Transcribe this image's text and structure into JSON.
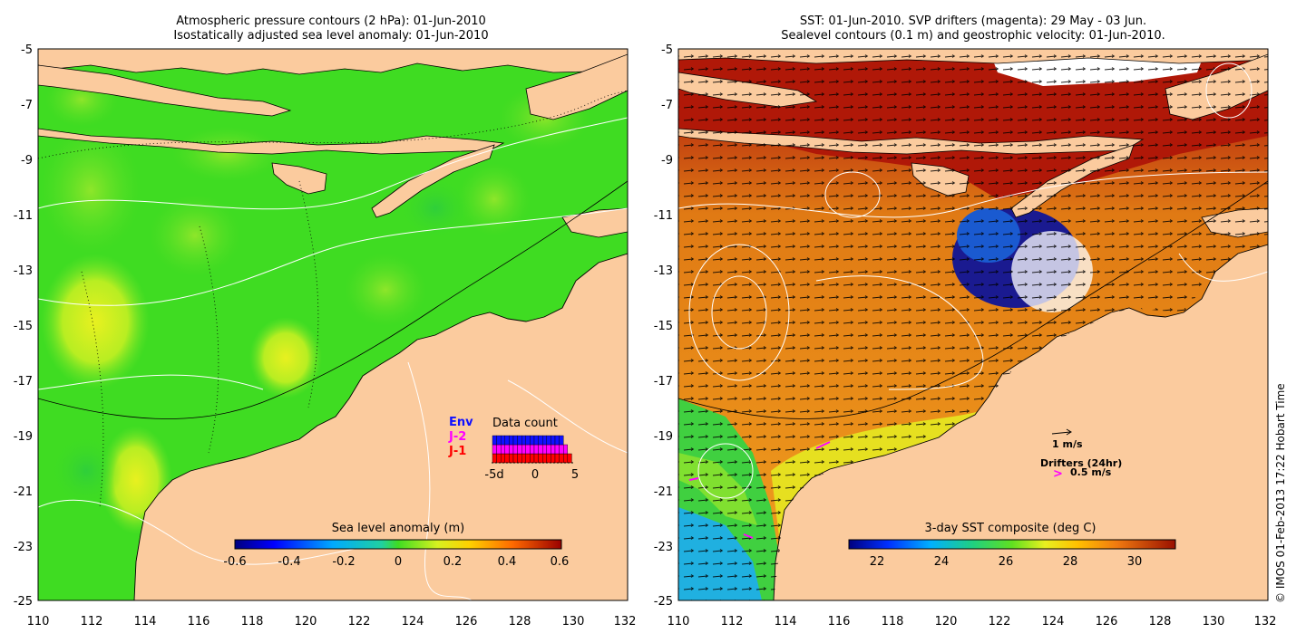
{
  "left_panel": {
    "title_line1": "Atmospheric pressure contours (2 hPa): 01-Jun-2010",
    "title_line2": "Isostatically adjusted sea level anomaly: 01-Jun-2010",
    "colorbar": {
      "label": "Sea level anomaly (m)",
      "ticks": [
        "-0.6",
        "-0.4",
        "-0.2",
        "0",
        "0.2",
        "0.4",
        "0.6"
      ]
    },
    "data_count": {
      "title": "Data count",
      "legend": [
        {
          "label": "Env",
          "color": "#1010ff"
        },
        {
          "label": "J-2",
          "color": "#ff00ff"
        },
        {
          "label": "J-1",
          "color": "#ff0000"
        }
      ],
      "axis_ticks": [
        "-5d",
        "0",
        "5"
      ],
      "bars": [
        3,
        3,
        3,
        3,
        3,
        3,
        3,
        3,
        3,
        3,
        3,
        3,
        3,
        3,
        3,
        3,
        3,
        2,
        1
      ]
    },
    "y_ticks": [
      "-5",
      "-7",
      "-9",
      "-11",
      "-13",
      "-15",
      "-17",
      "-19",
      "-21",
      "-23",
      "-25"
    ],
    "x_ticks": [
      "110",
      "112",
      "114",
      "116",
      "118",
      "120",
      "122",
      "124",
      "126",
      "128",
      "130",
      "132"
    ]
  },
  "right_panel": {
    "title_line1": "SST: 01-Jun-2010. SVP drifters (magenta): 29 May - 03 Jun.",
    "title_line2": "Sealevel contours (0.1 m) and geostrophic velocity: 01-Jun-2010.",
    "colorbar": {
      "label": "3-day SST composite (deg C)",
      "ticks": [
        "22",
        "24",
        "26",
        "28",
        "30"
      ]
    },
    "velocity_legend": {
      "scale_label": "1 m/s",
      "drifters_title": "Drifters (24hr)",
      "drifters_scale": "0.5 m/s",
      "drifter_marker": ">"
    },
    "y_ticks": [
      "-5",
      "-7",
      "-9",
      "-11",
      "-13",
      "-15",
      "-17",
      "-19",
      "-21",
      "-23",
      "-25"
    ],
    "x_ticks": [
      "110",
      "112",
      "114",
      "116",
      "118",
      "120",
      "122",
      "124",
      "126",
      "128",
      "130",
      "132"
    ]
  },
  "credit": "© IMOS 01-Feb-2013 17:22 Hobart Time",
  "colors": {
    "land": "#fbcb9e",
    "sla_ocean": "#3fdc22",
    "sst_warm": "#e07a10",
    "sst_hot": "#b01808"
  }
}
